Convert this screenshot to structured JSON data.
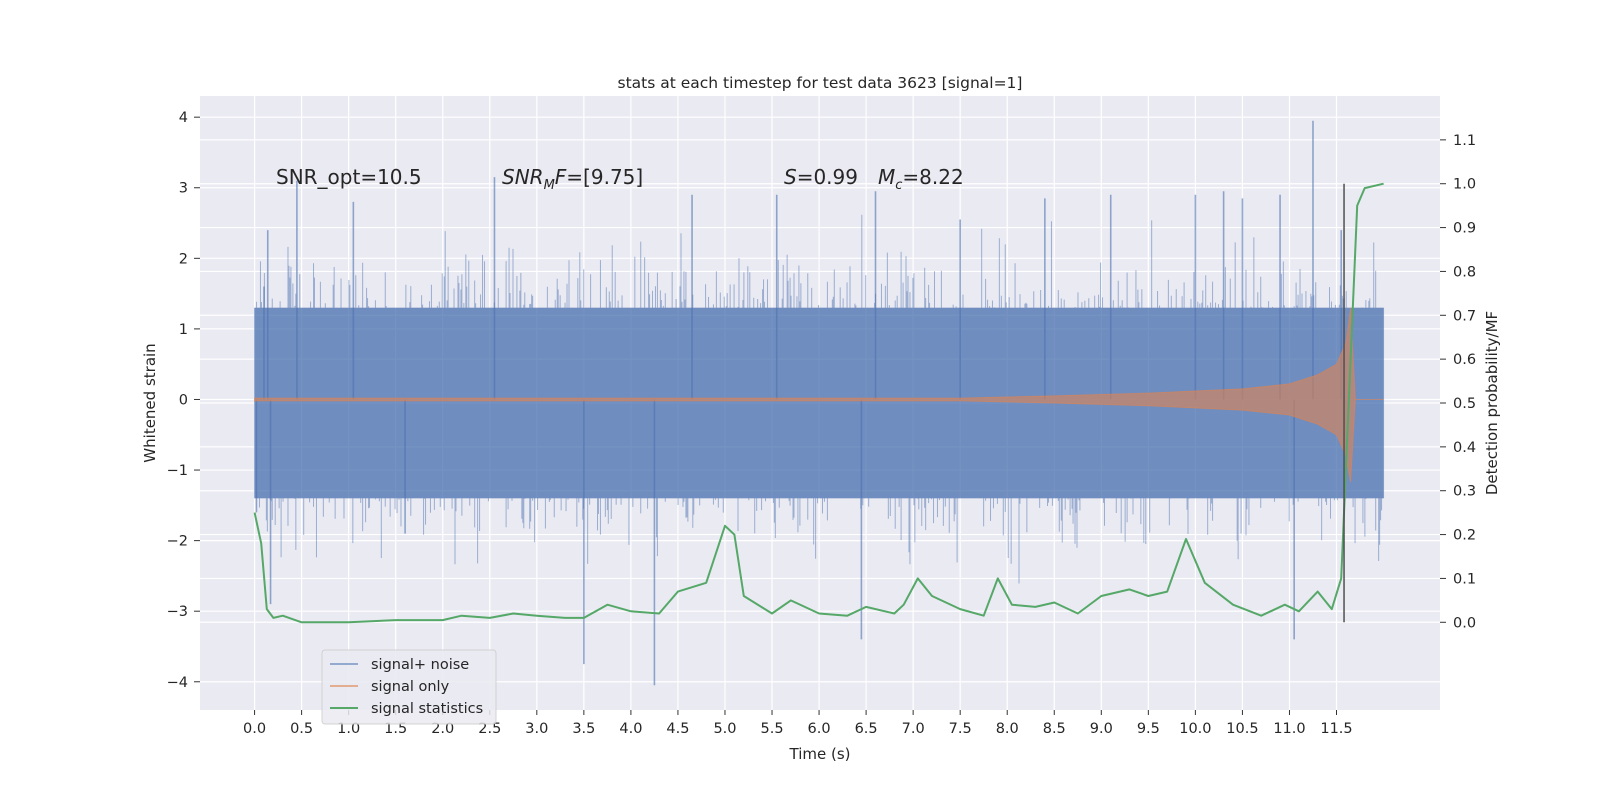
{
  "chart_data": {
    "type": "line",
    "title": "stats at each timestep for test data 3623 [signal=1]",
    "xlabel": "Time (s)",
    "ylabel": "Whitened strain",
    "ylabel_right": "Detection probability/MF",
    "xlim": [
      -0.58,
      12.6
    ],
    "ylim": [
      -4.4,
      4.3
    ],
    "ylim_right": [
      -0.2,
      1.2
    ],
    "grid": true,
    "x_ticks": [
      "0.0",
      "0.5",
      "1.0",
      "1.5",
      "2.0",
      "2.5",
      "3.0",
      "3.5",
      "4.0",
      "4.5",
      "5.0",
      "5.5",
      "6.0",
      "6.5",
      "7.0",
      "7.5",
      "8.0",
      "8.5",
      "9.0",
      "9.5",
      "10.0",
      "10.5",
      "11.0",
      "11.5"
    ],
    "y_ticks": [
      "4",
      "3",
      "2",
      "1",
      "0",
      "−1",
      "−2",
      "−3",
      "−4"
    ],
    "y_ticks_right": [
      "1.1",
      "1.0",
      "0.9",
      "0.8",
      "0.7",
      "0.6",
      "0.5",
      "0.4",
      "0.3",
      "0.2",
      "0.1",
      "0.0"
    ],
    "annotations": {
      "snr_opt": "SNR_opt=10.5",
      "snr_mf_base": "SNR",
      "snr_mf_sub": "M",
      "snr_mf_tail": "F",
      "snr_mf_value": "=[9.75]",
      "s_symbol": "S",
      "s_value": "=0.99",
      "mc_symbol": "M",
      "mc_sub": "c",
      "mc_value": "=8.22"
    },
    "merger_time": 11.58,
    "legend_position": "lower-left",
    "colors": {
      "signal_noise": "#4c72b0",
      "signal_only": "#dd8452",
      "statistics": "#55a868",
      "background": "#eaeaf2",
      "marker": "#505050"
    },
    "series": [
      {
        "name": "signal+ noise",
        "kind": "noise_band",
        "x_range": [
          0.0,
          12.0
        ],
        "typical_range": [
          -1.4,
          1.3
        ],
        "extremes": [
          {
            "x": 0.02,
            "y": -1.6
          },
          {
            "x": 0.1,
            "y": 1.6
          },
          {
            "x": 0.14,
            "y": 2.4
          },
          {
            "x": 0.17,
            "y": -2.9
          },
          {
            "x": 0.45,
            "y": 3.1
          },
          {
            "x": 1.05,
            "y": 2.8
          },
          {
            "x": 1.6,
            "y": -1.9
          },
          {
            "x": 2.55,
            "y": 3.15
          },
          {
            "x": 3.5,
            "y": -3.75
          },
          {
            "x": 4.25,
            "y": -4.05
          },
          {
            "x": 4.65,
            "y": 2.9
          },
          {
            "x": 5.55,
            "y": 2.9
          },
          {
            "x": 6.45,
            "y": -3.4
          },
          {
            "x": 6.6,
            "y": 2.95
          },
          {
            "x": 7.5,
            "y": 2.55
          },
          {
            "x": 8.4,
            "y": 2.85
          },
          {
            "x": 9.1,
            "y": 2.9
          },
          {
            "x": 10.0,
            "y": 2.9
          },
          {
            "x": 10.3,
            "y": 2.95
          },
          {
            "x": 10.5,
            "y": 2.85
          },
          {
            "x": 10.9,
            "y": 2.9
          },
          {
            "x": 11.05,
            "y": -3.4
          },
          {
            "x": 11.25,
            "y": 3.95
          },
          {
            "x": 11.55,
            "y": 2.4
          }
        ]
      },
      {
        "name": "signal only",
        "kind": "chirp_envelope",
        "points": [
          {
            "x": 0.0,
            "y": 0.02
          },
          {
            "x": 7.5,
            "y": 0.02
          },
          {
            "x": 8.5,
            "y": 0.05
          },
          {
            "x": 9.5,
            "y": 0.09
          },
          {
            "x": 10.5,
            "y": 0.15
          },
          {
            "x": 11.0,
            "y": 0.22
          },
          {
            "x": 11.3,
            "y": 0.35
          },
          {
            "x": 11.5,
            "y": 0.5
          },
          {
            "x": 11.6,
            "y": 0.8
          },
          {
            "x": 11.65,
            "y": 1.3
          },
          {
            "x": 11.7,
            "y": 0.0
          },
          {
            "x": 12.0,
            "y": 0.0
          }
        ]
      },
      {
        "name": "signal statistics",
        "axis": "right",
        "points": [
          {
            "x": 0.0,
            "y": 0.25
          },
          {
            "x": 0.07,
            "y": 0.18
          },
          {
            "x": 0.13,
            "y": 0.03
          },
          {
            "x": 0.2,
            "y": 0.01
          },
          {
            "x": 0.3,
            "y": 0.015
          },
          {
            "x": 0.5,
            "y": 0.0
          },
          {
            "x": 1.0,
            "y": 0.0
          },
          {
            "x": 1.5,
            "y": 0.005
          },
          {
            "x": 2.0,
            "y": 0.005
          },
          {
            "x": 2.2,
            "y": 0.015
          },
          {
            "x": 2.5,
            "y": 0.01
          },
          {
            "x": 2.75,
            "y": 0.02
          },
          {
            "x": 3.0,
            "y": 0.015
          },
          {
            "x": 3.3,
            "y": 0.01
          },
          {
            "x": 3.5,
            "y": 0.01
          },
          {
            "x": 3.75,
            "y": 0.04
          },
          {
            "x": 4.0,
            "y": 0.025
          },
          {
            "x": 4.3,
            "y": 0.02
          },
          {
            "x": 4.5,
            "y": 0.07
          },
          {
            "x": 4.8,
            "y": 0.09
          },
          {
            "x": 5.0,
            "y": 0.22
          },
          {
            "x": 5.1,
            "y": 0.2
          },
          {
            "x": 5.2,
            "y": 0.06
          },
          {
            "x": 5.5,
            "y": 0.02
          },
          {
            "x": 5.7,
            "y": 0.05
          },
          {
            "x": 6.0,
            "y": 0.02
          },
          {
            "x": 6.3,
            "y": 0.015
          },
          {
            "x": 6.5,
            "y": 0.035
          },
          {
            "x": 6.8,
            "y": 0.02
          },
          {
            "x": 6.9,
            "y": 0.04
          },
          {
            "x": 7.05,
            "y": 0.1
          },
          {
            "x": 7.2,
            "y": 0.06
          },
          {
            "x": 7.5,
            "y": 0.03
          },
          {
            "x": 7.75,
            "y": 0.015
          },
          {
            "x": 7.9,
            "y": 0.1
          },
          {
            "x": 8.05,
            "y": 0.04
          },
          {
            "x": 8.3,
            "y": 0.035
          },
          {
            "x": 8.5,
            "y": 0.045
          },
          {
            "x": 8.75,
            "y": 0.02
          },
          {
            "x": 9.0,
            "y": 0.06
          },
          {
            "x": 9.3,
            "y": 0.075
          },
          {
            "x": 9.5,
            "y": 0.06
          },
          {
            "x": 9.7,
            "y": 0.07
          },
          {
            "x": 9.9,
            "y": 0.19
          },
          {
            "x": 10.1,
            "y": 0.09
          },
          {
            "x": 10.4,
            "y": 0.04
          },
          {
            "x": 10.7,
            "y": 0.015
          },
          {
            "x": 10.95,
            "y": 0.04
          },
          {
            "x": 11.1,
            "y": 0.025
          },
          {
            "x": 11.3,
            "y": 0.07
          },
          {
            "x": 11.45,
            "y": 0.03
          },
          {
            "x": 11.55,
            "y": 0.1
          },
          {
            "x": 11.65,
            "y": 0.6
          },
          {
            "x": 11.72,
            "y": 0.95
          },
          {
            "x": 11.8,
            "y": 0.99
          },
          {
            "x": 12.0,
            "y": 1.0
          }
        ]
      }
    ]
  }
}
